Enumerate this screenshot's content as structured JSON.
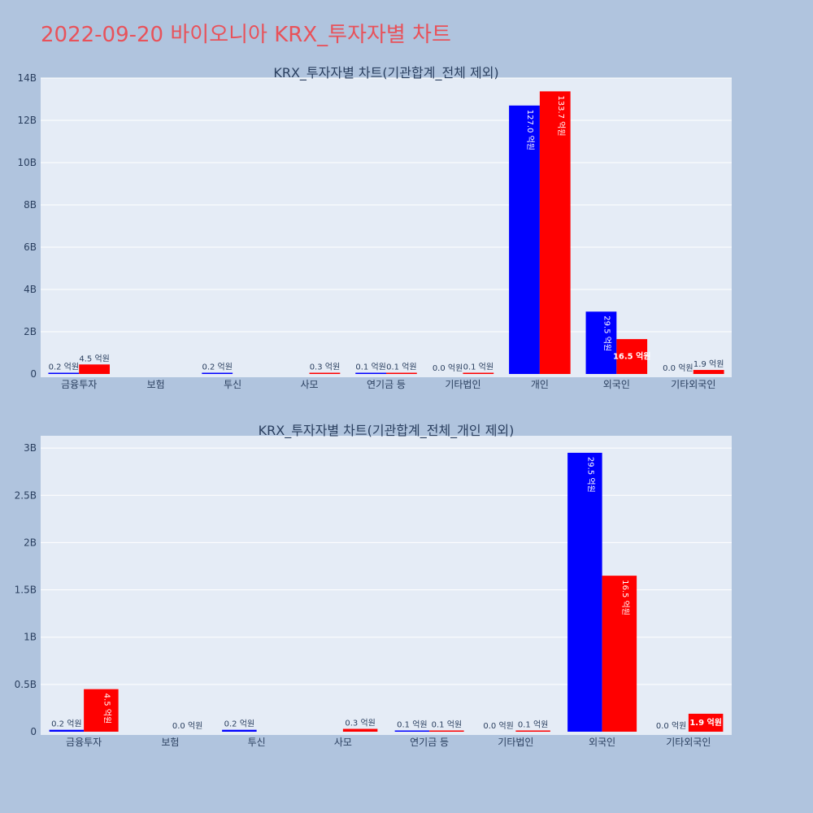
{
  "title": "2022-09-20 바이오니아 KRX_투자자별 차트",
  "colors": {
    "buy": "#0000ff",
    "sell": "#ff0000"
  },
  "chart_data": [
    {
      "type": "bar",
      "title": "KRX_투자자별 차트(기관합계_전체 제외)",
      "categories": [
        "금융투자",
        "보험",
        "투신",
        "사모",
        "연기금 등",
        "기타법인",
        "개인",
        "외국인",
        "기타외국인"
      ],
      "ylim": [
        0,
        14000000000
      ],
      "yticks": [
        0,
        2000000000,
        4000000000,
        6000000000,
        8000000000,
        10000000000,
        12000000000,
        14000000000
      ],
      "ytick_labels": [
        "0",
        "2B",
        "4B",
        "6B",
        "8B",
        "10B",
        "12B",
        "14B"
      ],
      "series": [
        {
          "color": "#0000ff",
          "values": [
            20000000,
            null,
            20000000,
            null,
            10000000,
            0,
            12700000000,
            2950000000,
            0
          ],
          "labels": [
            "0.2 억원",
            "",
            "0.2 억원",
            "",
            "0.1 억원",
            "0.0 억원",
            "127.0 억원",
            "29.5 억원",
            "0.0 억원"
          ]
        },
        {
          "color": "#ff0000",
          "values": [
            450000000,
            null,
            null,
            30000000,
            10000000,
            10000000,
            13370000000,
            1650000000,
            190000000
          ],
          "labels": [
            "4.5 억원",
            "",
            "",
            "0.3 억원",
            "0.1 억원",
            "0.1 억원",
            "133.7 억원",
            "16.5 억원",
            "1.9 억원"
          ]
        }
      ]
    },
    {
      "type": "bar",
      "title": "KRX_투자자별 차트(기관합계_전체_개인 제외)",
      "categories": [
        "금융투자",
        "보험",
        "투신",
        "사모",
        "연기금 등",
        "기타법인",
        "외국인",
        "기타외국인"
      ],
      "ylim": [
        0,
        3130000000
      ],
      "yticks": [
        0,
        500000000,
        1000000000,
        1500000000,
        2000000000,
        2500000000,
        3000000000
      ],
      "ytick_labels": [
        "0",
        "0.5B",
        "1B",
        "1.5B",
        "2B",
        "2.5B",
        "3B"
      ],
      "series": [
        {
          "color": "#0000ff",
          "values": [
            20000000,
            null,
            20000000,
            null,
            10000000,
            0,
            2950000000,
            0
          ],
          "labels": [
            "0.2 억원",
            "",
            "0.2 억원",
            "",
            "0.1 억원",
            "0.0 억원",
            "29.5 억원",
            "0.0 억원"
          ]
        },
        {
          "color": "#ff0000",
          "values": [
            450000000,
            0,
            null,
            30000000,
            10000000,
            10000000,
            1650000000,
            190000000
          ],
          "labels": [
            "4.5 억원",
            "0.0 억원",
            "",
            "0.3 억원",
            "0.1 억원",
            "0.1 억원",
            "16.5 억원",
            "1.9 억원"
          ]
        }
      ]
    }
  ]
}
